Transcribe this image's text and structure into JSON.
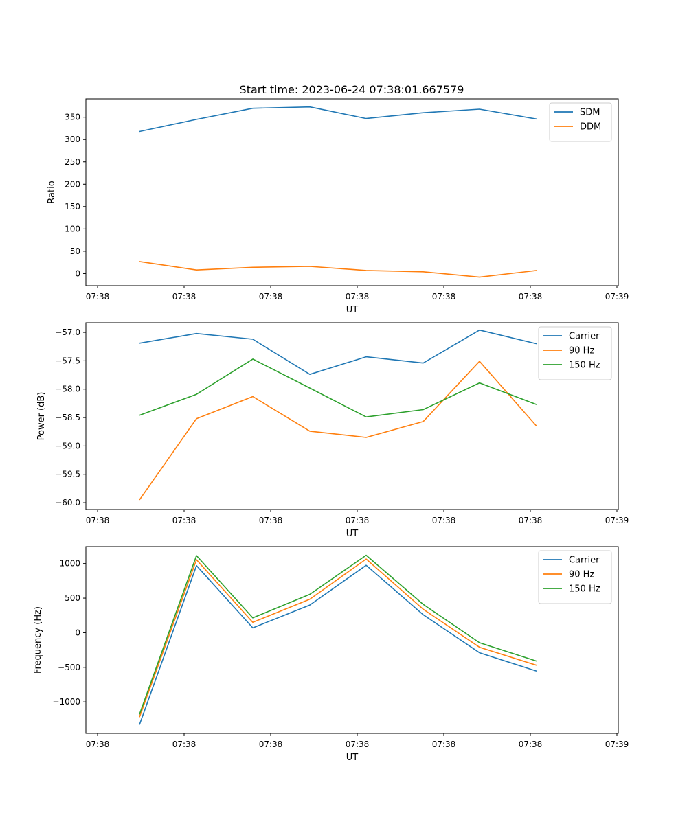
{
  "figure_title": "Start time: 2023-06-24 07:38:01.667579",
  "chart_data": [
    {
      "type": "line",
      "title": "Start time: 2023-06-24 07:38:01.667579",
      "xlabel": "UT",
      "ylabel": "Ratio",
      "x_tick_labels": [
        "07:38",
        "07:38",
        "07:38",
        "07:38",
        "07:38",
        "07:38",
        "07:38",
        "07:39"
      ],
      "y_ticks": [
        0,
        50,
        100,
        150,
        200,
        250,
        300,
        350
      ],
      "y_tick_labels": [
        "0",
        "50",
        "100",
        "150",
        "200",
        "250",
        "300",
        "350"
      ],
      "ylim": [
        -27,
        391
      ],
      "legend": "top-right",
      "series": [
        {
          "name": "SDM",
          "color": "#1f77b4",
          "values": [
            318,
            345,
            370,
            373,
            347,
            360,
            368,
            346
          ]
        },
        {
          "name": "DDM",
          "color": "#ff7f0e",
          "values": [
            27,
            8,
            14,
            16,
            7,
            4,
            -8,
            7
          ]
        }
      ]
    },
    {
      "type": "line",
      "xlabel": "UT",
      "ylabel": "Power (dB)",
      "x_tick_labels": [
        "07:38",
        "07:38",
        "07:38",
        "07:38",
        "07:38",
        "07:38",
        "07:38",
        "07:39"
      ],
      "y_ticks": [
        -60.0,
        -59.5,
        -59.0,
        -58.5,
        -58.0,
        -57.5,
        -57.0
      ],
      "y_tick_labels": [
        "−60.0",
        "−59.5",
        "−59.0",
        "−58.5",
        "−58.0",
        "−57.5",
        "−57.0"
      ],
      "ylim": [
        -60.12,
        -56.83
      ],
      "legend": "top-right",
      "series": [
        {
          "name": "Carrier",
          "color": "#1f77b4",
          "values": [
            -57.19,
            -57.02,
            -57.12,
            -57.74,
            -57.43,
            -57.54,
            -56.96,
            -57.2
          ]
        },
        {
          "name": "90 Hz",
          "color": "#ff7f0e",
          "values": [
            -59.95,
            -58.52,
            -58.13,
            -58.74,
            -58.85,
            -58.57,
            -57.51,
            -58.65
          ]
        },
        {
          "name": "150 Hz",
          "color": "#2ca02c",
          "values": [
            -58.46,
            -58.09,
            -57.47,
            -57.98,
            -58.49,
            -58.36,
            -57.89,
            -58.27
          ]
        }
      ]
    },
    {
      "type": "line",
      "xlabel": "UT",
      "ylabel": "Frequency (Hz)",
      "x_tick_labels": [
        "07:38",
        "07:38",
        "07:38",
        "07:38",
        "07:38",
        "07:38",
        "07:38",
        "07:39"
      ],
      "y_ticks": [
        -1000,
        -500,
        0,
        500,
        1000
      ],
      "y_tick_labels": [
        "−1000",
        "−500",
        "0",
        "500",
        "1000"
      ],
      "ylim": [
        -1455,
        1245
      ],
      "legend": "top-right",
      "series": [
        {
          "name": "Carrier",
          "color": "#1f77b4",
          "values": [
            -1330,
            970,
            70,
            400,
            975,
            260,
            -290,
            -555
          ]
        },
        {
          "name": "90 Hz",
          "color": "#ff7f0e",
          "values": [
            -1220,
            1055,
            150,
            485,
            1065,
            340,
            -210,
            -470
          ]
        },
        {
          "name": "150 Hz",
          "color": "#2ca02c",
          "values": [
            -1180,
            1115,
            215,
            555,
            1120,
            410,
            -145,
            -410
          ]
        }
      ]
    }
  ]
}
